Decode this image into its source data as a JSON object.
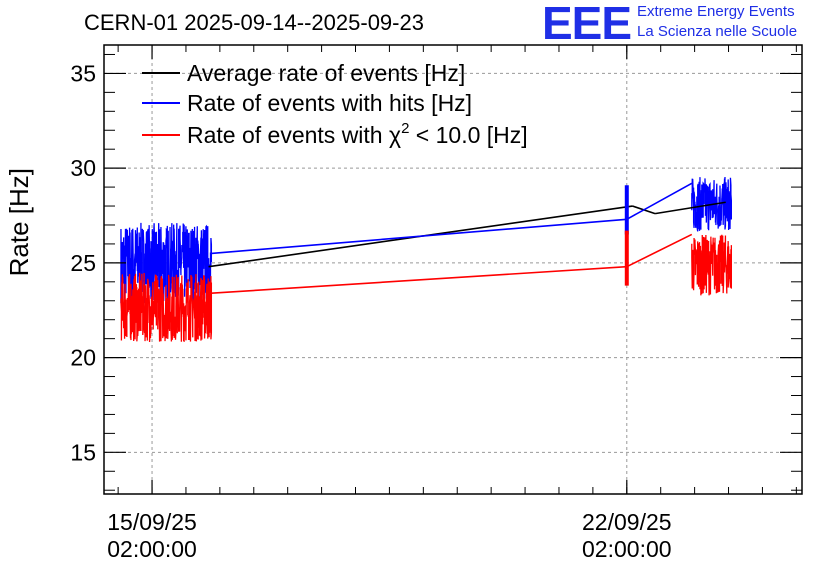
{
  "header": {
    "title": "CERN-01 2025-09-14--2025-09-23",
    "logo_text": "EEE",
    "logo_line1": "Extreme Energy Events",
    "logo_line2": "La Scienza nelle Scuole"
  },
  "colors": {
    "average": "#000000",
    "hits": "#0000ff",
    "chi2": "#ff0000",
    "logo": "#1f2fe6",
    "grid": "#999999"
  },
  "chart_data": {
    "type": "line",
    "ylabel": "Rate [Hz]",
    "xlabel": "",
    "ylim": [
      12.8,
      36.5
    ],
    "xlim": [
      "2025-09-14 09:00",
      "2025-09-24 16:00"
    ],
    "grid": true,
    "legend_position": "top-left",
    "yticks": [
      "15",
      "20",
      "25",
      "30",
      "35"
    ],
    "xticks": [
      {
        "date": "15/09/25",
        "time": "02:00:00"
      },
      {
        "date": "22/09/25",
        "time": "02:00:00"
      }
    ],
    "series": [
      {
        "name": "Average rate of events [Hz]",
        "segments": [
          {
            "x": [
              "2025-09-15 22:00",
              "2025-09-22 04:00"
            ],
            "y": [
              24.8,
              28.0
            ]
          },
          {
            "x": [
              "2025-09-22 04:00",
              "2025-09-22 12:00"
            ],
            "y": [
              28.0,
              27.6
            ]
          },
          {
            "x": [
              "2025-09-22 12:00",
              "2025-09-23 13:00"
            ],
            "y": [
              27.6,
              28.2
            ]
          }
        ]
      },
      {
        "name": "Rate of events with hits [Hz]",
        "noisy_blocks": [
          {
            "x": [
              "2025-09-14 15:00",
              "2025-09-15 23:00"
            ],
            "y_range": [
              22.5,
              27.5
            ]
          },
          {
            "x": [
              "2025-09-23 01:00",
              "2025-09-23 15:00"
            ],
            "y_range": [
              26.4,
              29.8
            ]
          }
        ],
        "segments": [
          {
            "x": [
              "2025-09-15 23:00",
              "2025-09-22 02:00"
            ],
            "y": [
              25.5,
              27.3
            ]
          },
          {
            "x": [
              "2025-09-22 02:00",
              "2025-09-23 01:00"
            ],
            "y": [
              27.3,
              29.2
            ]
          }
        ],
        "spikes": [
          {
            "x": "2025-09-22 02:00",
            "y_range": [
              26.5,
              29.1
            ]
          }
        ]
      },
      {
        "name": "Rate of events with χ² < 10.0 [Hz]",
        "legend_parts": {
          "pre": "Rate of events with ",
          "chi": "χ",
          "sup": "2",
          "post": " < 10.0 [Hz]"
        },
        "noisy_blocks": [
          {
            "x": [
              "2025-09-14 15:00",
              "2025-09-15 23:00"
            ],
            "y_range": [
              20.5,
              24.8
            ]
          },
          {
            "x": [
              "2025-09-23 01:00",
              "2025-09-23 15:00"
            ],
            "y_range": [
              23.0,
              26.8
            ]
          }
        ],
        "segments": [
          {
            "x": [
              "2025-09-15 23:00",
              "2025-09-22 02:00"
            ],
            "y": [
              23.4,
              24.8
            ]
          },
          {
            "x": [
              "2025-09-22 02:00",
              "2025-09-23 01:00"
            ],
            "y": [
              24.8,
              26.5
            ]
          }
        ],
        "spikes": [
          {
            "x": "2025-09-22 02:00",
            "y_range": [
              23.8,
              26.7
            ]
          }
        ]
      }
    ]
  }
}
